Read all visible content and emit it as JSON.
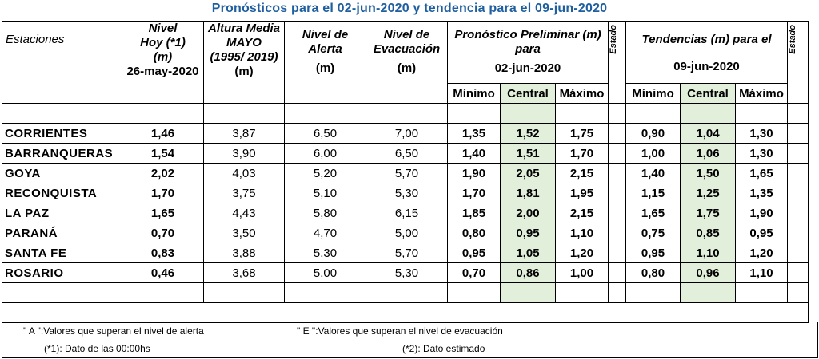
{
  "title": "Pronósticos para el 02-jun-2020 y tendencia para el 09-jun-2020",
  "headers": {
    "estaciones": "Estaciones",
    "nivel_hoy_1": "Nivel",
    "nivel_hoy_2": "Hoy (*1)",
    "nivel_hoy_3": "(m)",
    "nivel_hoy_date": "26-may-2020",
    "altura_1": "Altura Media",
    "altura_2": "MAYO",
    "altura_3": "(1995/ 2019)",
    "altura_unit": "(m)",
    "alerta_1": "Nivel de",
    "alerta_2": "Alerta",
    "alerta_unit": "(m)",
    "evac_1": "Nivel de",
    "evac_2": "Evacuación",
    "evac_unit": "(m)",
    "pron_1": "Pronóstico Preliminar (m)",
    "pron_2": "para",
    "pron_date": "02-jun-2020",
    "estado": "Estado",
    "tend_1": "Tendencias (m) para el",
    "tend_date": "09-jun-2020",
    "minimo": "Mínimo",
    "central": "Central",
    "maximo": "Máximo"
  },
  "rows": [
    {
      "name": "CORRIENTES",
      "hoy": "1,46",
      "media": "3,87",
      "alerta": "6,50",
      "evac": "7,00",
      "p_min": "1,35",
      "p_cen": "1,52",
      "p_max": "1,75",
      "t_min": "0,90",
      "t_cen": "1,04",
      "t_max": "1,30"
    },
    {
      "name": "BARRANQUERAS",
      "hoy": "1,54",
      "media": "3,90",
      "alerta": "6,00",
      "evac": "6,50",
      "p_min": "1,40",
      "p_cen": "1,51",
      "p_max": "1,70",
      "t_min": "1,00",
      "t_cen": "1,06",
      "t_max": "1,30"
    },
    {
      "name": "GOYA",
      "hoy": "2,02",
      "media": "4,03",
      "alerta": "5,20",
      "evac": "5,70",
      "p_min": "1,90",
      "p_cen": "2,05",
      "p_max": "2,15",
      "t_min": "1,40",
      "t_cen": "1,50",
      "t_max": "1,65"
    },
    {
      "name": "RECONQUISTA",
      "hoy": "1,70",
      "media": "3,75",
      "alerta": "5,10",
      "evac": "5,30",
      "p_min": "1,70",
      "p_cen": "1,81",
      "p_max": "1,95",
      "t_min": "1,15",
      "t_cen": "1,25",
      "t_max": "1,35"
    },
    {
      "name": "LA PAZ",
      "hoy": "1,65",
      "media": "4,43",
      "alerta": "5,80",
      "evac": "6,15",
      "p_min": "1,85",
      "p_cen": "2,00",
      "p_max": "2,15",
      "t_min": "1,65",
      "t_cen": "1,75",
      "t_max": "1,90"
    },
    {
      "name": "PARANÁ",
      "hoy": "0,70",
      "media": "3,50",
      "alerta": "4,70",
      "evac": "5,00",
      "p_min": "0,80",
      "p_cen": "0,95",
      "p_max": "1,10",
      "t_min": "0,75",
      "t_cen": "0,85",
      "t_max": "0,95"
    },
    {
      "name": "SANTA FE",
      "hoy": "0,83",
      "media": "3,88",
      "alerta": "5,30",
      "evac": "5,70",
      "p_min": "0,95",
      "p_cen": "1,05",
      "p_max": "1,20",
      "t_min": "0,95",
      "t_cen": "1,10",
      "t_max": "1,20"
    },
    {
      "name": "ROSARIO",
      "hoy": "0,46",
      "media": "3,68",
      "alerta": "5,00",
      "evac": "5,30",
      "p_min": "0,70",
      "p_cen": "0,86",
      "p_max": "1,00",
      "t_min": "0,80",
      "t_cen": "0,96",
      "t_max": "1,10"
    }
  ],
  "footnotes": {
    "a": "\" A \":Valores que superan el nivel de alerta",
    "e": "\" E \":Valores que superan el nivel de evacuación",
    "n1": "(*1): Dato de las 00:00hs",
    "n2": "(*2): Dato estimado"
  },
  "colors": {
    "title": "#1f5f9f",
    "central_fill": "#e2efda"
  }
}
